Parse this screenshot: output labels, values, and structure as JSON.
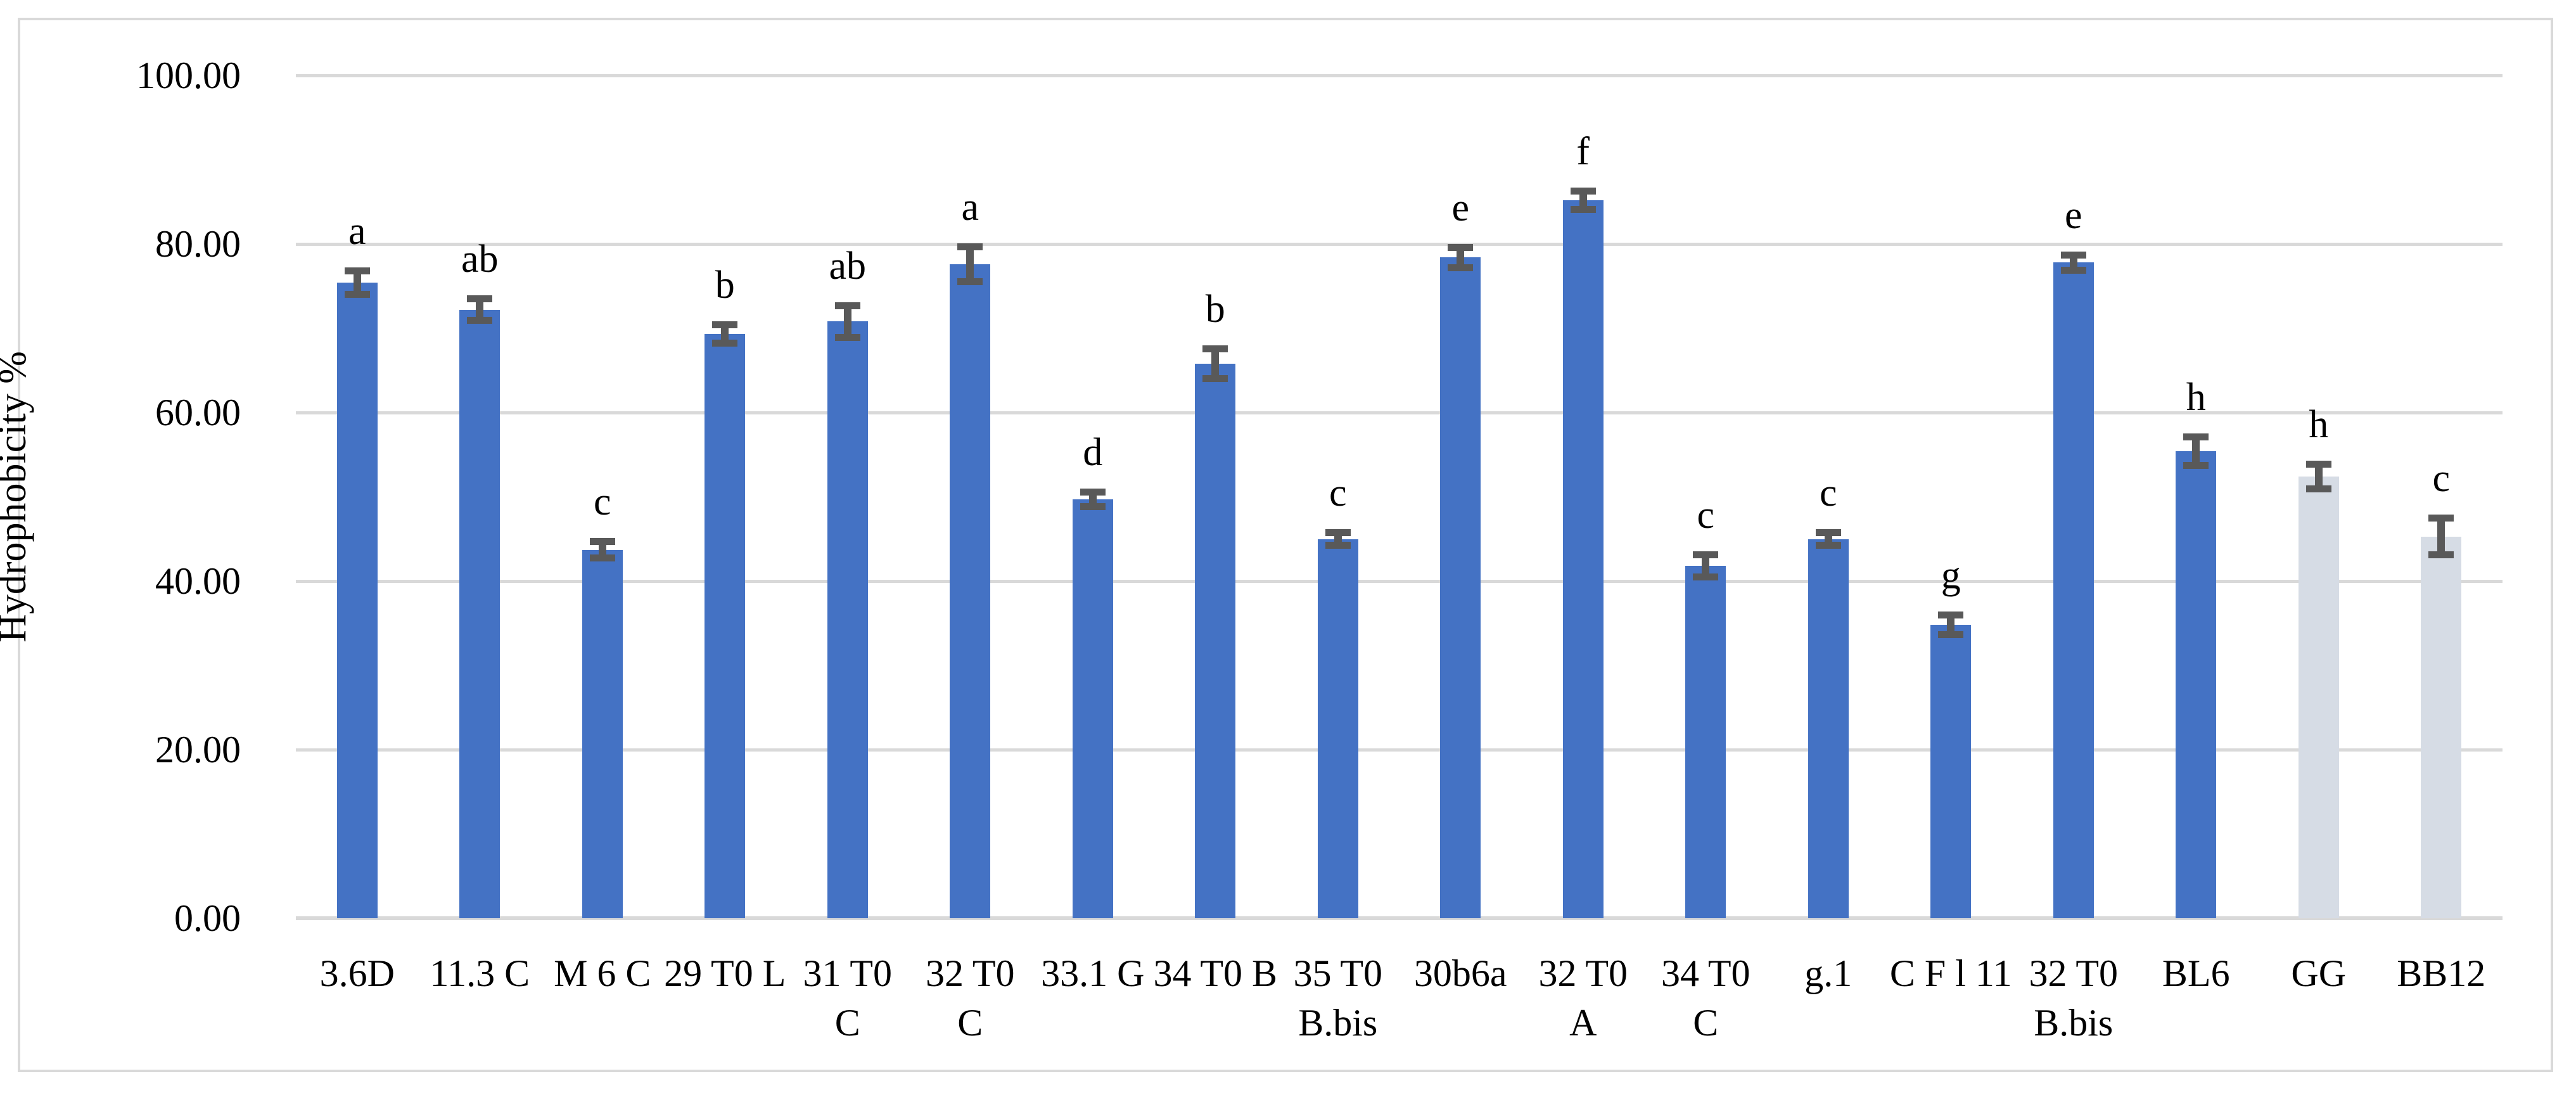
{
  "chart_data": {
    "type": "bar",
    "title": "",
    "xlabel": "",
    "ylabel": "Hydrophobicity %",
    "ylim": [
      0,
      100
    ],
    "ytick_step": 20,
    "ytick_labels": [
      "0.00",
      "20.00",
      "40.00",
      "60.00",
      "80.00",
      "100.00"
    ],
    "grid": "horizontal",
    "legend": "none",
    "categories": [
      "3.6D",
      "11.3 C",
      "M 6 C",
      "29 T0 L",
      "31 T0\nC",
      "32 T0\nC",
      "33.1 G",
      "34 T0 B",
      "35 T0\nB.bis",
      "30b6a",
      "32 T0\nA",
      "34 T0\nC",
      "g.1",
      "C F l 11",
      "32 T0\nB.bis",
      "BL6",
      "GG",
      "BB12"
    ],
    "values": [
      75.4,
      72.2,
      43.7,
      69.3,
      70.8,
      77.6,
      49.7,
      65.8,
      45.0,
      78.4,
      85.2,
      41.8,
      45.0,
      34.8,
      77.8,
      55.4,
      52.4,
      45.3
    ],
    "errors": [
      1.8,
      1.7,
      1.4,
      1.5,
      2.3,
      2.5,
      1.3,
      2.2,
      1.2,
      1.6,
      1.5,
      1.7,
      1.2,
      1.6,
      1.3,
      2.1,
      1.9,
      2.6
    ],
    "sig_letters": [
      "a",
      "ab",
      "c",
      "b",
      "ab",
      "a",
      "d",
      "b",
      "c",
      "e",
      "f",
      "c",
      "c",
      "g",
      "e",
      "h",
      "h",
      "c"
    ],
    "bar_styles": [
      "blue",
      "blue",
      "blue",
      "blue",
      "blue",
      "blue",
      "blue",
      "blue",
      "blue",
      "blue",
      "blue",
      "blue",
      "blue",
      "blue",
      "blue",
      "blue",
      "light",
      "light"
    ],
    "colors": {
      "bar_blue": "#4472C4",
      "bar_light": "#D6DCE5",
      "error_bar": "#595959",
      "gridline": "#D9D9D9",
      "frame_border": "#D9D9D9",
      "text": "#000000",
      "background": "#FFFFFF"
    }
  }
}
